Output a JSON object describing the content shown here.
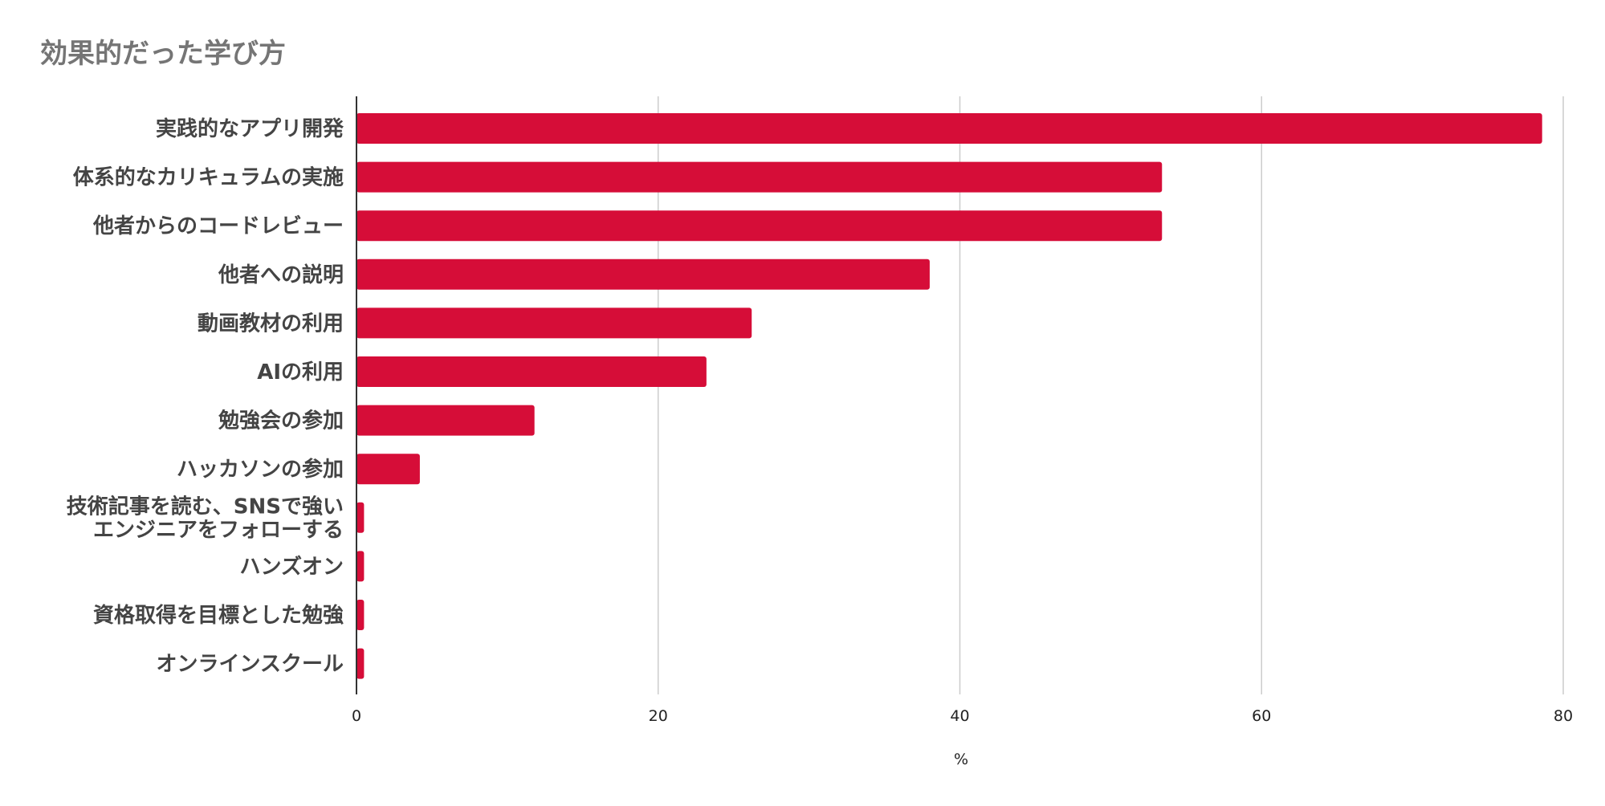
{
  "chart_data": {
    "type": "bar",
    "orientation": "horizontal",
    "title": "効果的だった学び方",
    "xlabel": "%",
    "ylabel": "",
    "xlim": [
      0,
      80
    ],
    "xticks": [
      0,
      20,
      40,
      60,
      80
    ],
    "grid": true,
    "legend": "none",
    "bar_color": "#d60d38",
    "categories": [
      [
        "実践的なアプリ開発"
      ],
      [
        "体系的なカリキュラムの実施"
      ],
      [
        "他者からのコードレビュー"
      ],
      [
        "他者への説明"
      ],
      [
        "動画教材の利用"
      ],
      [
        "AIの利用"
      ],
      [
        "勉強会の参加"
      ],
      [
        "ハッカソンの参加"
      ],
      [
        "技術記事を読む、SNSで強い",
        "エンジニアをフォローする"
      ],
      [
        "ハンズオン"
      ],
      [
        "資格取得を目標とした勉強"
      ],
      [
        "オンラインスクール"
      ]
    ],
    "values": [
      78.6,
      53.4,
      53.4,
      38.0,
      26.2,
      23.2,
      11.8,
      4.2,
      0.5,
      0.5,
      0.5,
      0.5
    ]
  }
}
